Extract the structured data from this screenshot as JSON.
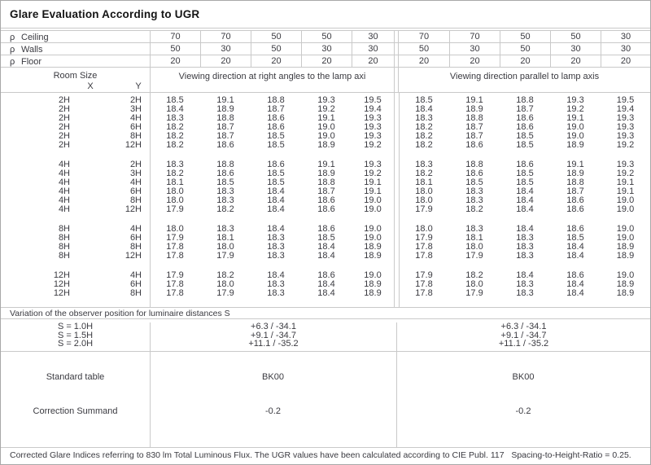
{
  "title": "Glare Evaluation According to UGR",
  "reflectances": {
    "rows": [
      {
        "symbol": "ρ",
        "label": "Ceiling",
        "values": [
          "70",
          "70",
          "50",
          "50",
          "30",
          "70",
          "70",
          "50",
          "50",
          "30"
        ]
      },
      {
        "symbol": "ρ",
        "label": "Walls",
        "values": [
          "50",
          "30",
          "50",
          "30",
          "30",
          "50",
          "30",
          "50",
          "30",
          "30"
        ]
      },
      {
        "symbol": "ρ",
        "label": "Floor",
        "values": [
          "20",
          "20",
          "20",
          "20",
          "20",
          "20",
          "20",
          "20",
          "20",
          "20"
        ]
      }
    ]
  },
  "header": {
    "room_size": "Room Size",
    "x": "X",
    "y": "Y",
    "left_section": "Viewing direction at right angles to the lamp axi",
    "right_section": "Viewing direction parallel to lamp axis"
  },
  "ugr_table": {
    "groups": [
      {
        "rows": [
          {
            "x": "2H",
            "y": "2H",
            "left": [
              "18.5",
              "19.1",
              "18.8",
              "19.3",
              "19.5"
            ],
            "right": [
              "18.5",
              "19.1",
              "18.8",
              "19.3",
              "19.5"
            ]
          },
          {
            "x": "2H",
            "y": "3H",
            "left": [
              "18.4",
              "18.9",
              "18.7",
              "19.2",
              "19.4"
            ],
            "right": [
              "18.4",
              "18.9",
              "18.7",
              "19.2",
              "19.4"
            ]
          },
          {
            "x": "2H",
            "y": "4H",
            "left": [
              "18.3",
              "18.8",
              "18.6",
              "19.1",
              "19.3"
            ],
            "right": [
              "18.3",
              "18.8",
              "18.6",
              "19.1",
              "19.3"
            ]
          },
          {
            "x": "2H",
            "y": "6H",
            "left": [
              "18.2",
              "18.7",
              "18.6",
              "19.0",
              "19.3"
            ],
            "right": [
              "18.2",
              "18.7",
              "18.6",
              "19.0",
              "19.3"
            ]
          },
          {
            "x": "2H",
            "y": "8H",
            "left": [
              "18.2",
              "18.7",
              "18.5",
              "19.0",
              "19.3"
            ],
            "right": [
              "18.2",
              "18.7",
              "18.5",
              "19.0",
              "19.3"
            ]
          },
          {
            "x": "2H",
            "y": "12H",
            "left": [
              "18.2",
              "18.6",
              "18.5",
              "18.9",
              "19.2"
            ],
            "right": [
              "18.2",
              "18.6",
              "18.5",
              "18.9",
              "19.2"
            ]
          }
        ]
      },
      {
        "rows": [
          {
            "x": "4H",
            "y": "2H",
            "left": [
              "18.3",
              "18.8",
              "18.6",
              "19.1",
              "19.3"
            ],
            "right": [
              "18.3",
              "18.8",
              "18.6",
              "19.1",
              "19.3"
            ]
          },
          {
            "x": "4H",
            "y": "3H",
            "left": [
              "18.2",
              "18.6",
              "18.5",
              "18.9",
              "19.2"
            ],
            "right": [
              "18.2",
              "18.6",
              "18.5",
              "18.9",
              "19.2"
            ]
          },
          {
            "x": "4H",
            "y": "4H",
            "left": [
              "18.1",
              "18.5",
              "18.5",
              "18.8",
              "19.1"
            ],
            "right": [
              "18.1",
              "18.5",
              "18.5",
              "18.8",
              "19.1"
            ]
          },
          {
            "x": "4H",
            "y": "6H",
            "left": [
              "18.0",
              "18.3",
              "18.4",
              "18.7",
              "19.1"
            ],
            "right": [
              "18.0",
              "18.3",
              "18.4",
              "18.7",
              "19.1"
            ]
          },
          {
            "x": "4H",
            "y": "8H",
            "left": [
              "18.0",
              "18.3",
              "18.4",
              "18.6",
              "19.0"
            ],
            "right": [
              "18.0",
              "18.3",
              "18.4",
              "18.6",
              "19.0"
            ]
          },
          {
            "x": "4H",
            "y": "12H",
            "left": [
              "17.9",
              "18.2",
              "18.4",
              "18.6",
              "19.0"
            ],
            "right": [
              "17.9",
              "18.2",
              "18.4",
              "18.6",
              "19.0"
            ]
          }
        ]
      },
      {
        "rows": [
          {
            "x": "8H",
            "y": "4H",
            "left": [
              "18.0",
              "18.3",
              "18.4",
              "18.6",
              "19.0"
            ],
            "right": [
              "18.0",
              "18.3",
              "18.4",
              "18.6",
              "19.0"
            ]
          },
          {
            "x": "8H",
            "y": "6H",
            "left": [
              "17.9",
              "18.1",
              "18.3",
              "18.5",
              "19.0"
            ],
            "right": [
              "17.9",
              "18.1",
              "18.3",
              "18.5",
              "19.0"
            ]
          },
          {
            "x": "8H",
            "y": "8H",
            "left": [
              "17.8",
              "18.0",
              "18.3",
              "18.4",
              "18.9"
            ],
            "right": [
              "17.8",
              "18.0",
              "18.3",
              "18.4",
              "18.9"
            ]
          },
          {
            "x": "8H",
            "y": "12H",
            "left": [
              "17.8",
              "17.9",
              "18.3",
              "18.4",
              "18.9"
            ],
            "right": [
              "17.8",
              "17.9",
              "18.3",
              "18.4",
              "18.9"
            ]
          }
        ]
      },
      {
        "rows": [
          {
            "x": "12H",
            "y": "4H",
            "left": [
              "17.9",
              "18.2",
              "18.4",
              "18.6",
              "19.0"
            ],
            "right": [
              "17.9",
              "18.2",
              "18.4",
              "18.6",
              "19.0"
            ]
          },
          {
            "x": "12H",
            "y": "6H",
            "left": [
              "17.8",
              "18.0",
              "18.3",
              "18.4",
              "18.9"
            ],
            "right": [
              "17.8",
              "18.0",
              "18.3",
              "18.4",
              "18.9"
            ]
          },
          {
            "x": "12H",
            "y": "8H",
            "left": [
              "17.8",
              "17.9",
              "18.3",
              "18.4",
              "18.9"
            ],
            "right": [
              "17.8",
              "17.9",
              "18.3",
              "18.4",
              "18.9"
            ]
          }
        ]
      }
    ]
  },
  "variation": {
    "label": "Variation of the observer position for luminaire distances S",
    "rows": [
      {
        "s": "S = 1.0H",
        "left": "+6.3 / -34.1",
        "right": "+6.3 / -34.1"
      },
      {
        "s": "S = 1.5H",
        "left": "+9.1 / -34.7",
        "right": "+9.1 / -34.7"
      },
      {
        "s": "S = 2.0H",
        "left": "+11.1 / -35.2",
        "right": "+11.1 / -35.2"
      }
    ]
  },
  "summary": {
    "standard_table_label": "Standard table",
    "standard_table_left": "BK00",
    "standard_table_right": "BK00",
    "correction_label": "Correction Summand",
    "correction_left": "-0.2",
    "correction_right": "-0.2"
  },
  "footer_text": "Corrected Glare Indices referring to 830 lm Total Luminous Flux. The UGR values have been calculated according to CIE Publ. 117   Spacing-to-Height-Ratio = 0.25."
}
